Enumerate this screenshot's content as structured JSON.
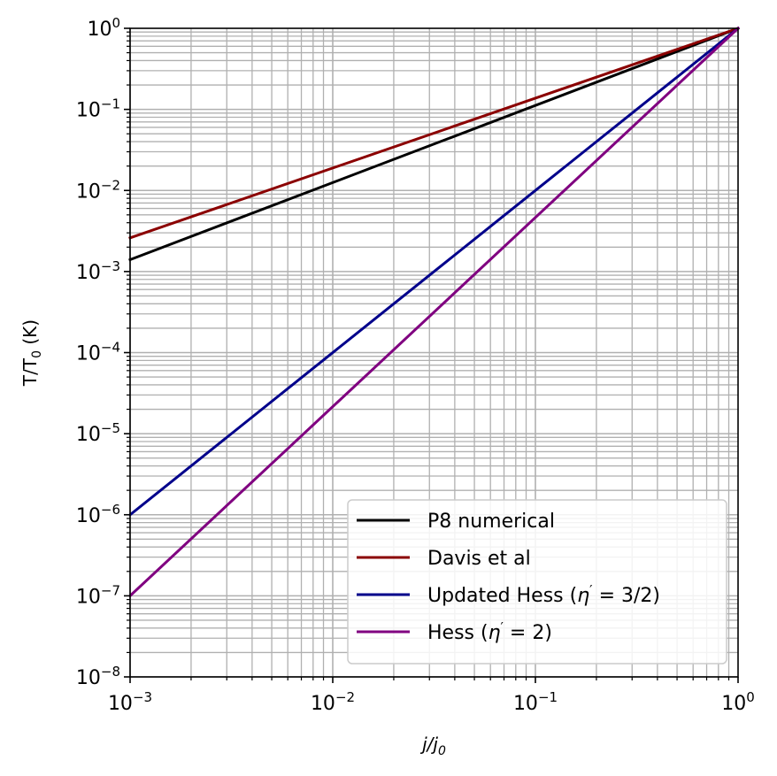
{
  "chart_data": {
    "type": "line",
    "x_scale": "log",
    "y_scale": "log",
    "xlim": [
      0.001,
      1
    ],
    "ylim": [
      1e-08,
      1
    ],
    "grid": true,
    "grid_minor": true,
    "legend_position": "lower-right",
    "xlabel": {
      "base": "j/j",
      "sub": "0"
    },
    "ylabel": {
      "base": "T/T",
      "sub": "0",
      "suffix": " (K)"
    },
    "x_ticks": [
      {
        "value": 0.001,
        "base": "10",
        "exp": "−3"
      },
      {
        "value": 0.01,
        "base": "10",
        "exp": "−2"
      },
      {
        "value": 0.1,
        "base": "10",
        "exp": "−1"
      },
      {
        "value": 1,
        "base": "10",
        "exp": "0"
      }
    ],
    "y_ticks": [
      {
        "value": 1e-08,
        "base": "10",
        "exp": "−8"
      },
      {
        "value": 1e-07,
        "base": "10",
        "exp": "−7"
      },
      {
        "value": 1e-06,
        "base": "10",
        "exp": "−6"
      },
      {
        "value": 1e-05,
        "base": "10",
        "exp": "−5"
      },
      {
        "value": 0.0001,
        "base": "10",
        "exp": "−4"
      },
      {
        "value": 0.001,
        "base": "10",
        "exp": "−3"
      },
      {
        "value": 0.01,
        "base": "10",
        "exp": "−2"
      },
      {
        "value": 0.1,
        "base": "10",
        "exp": "−1"
      },
      {
        "value": 1,
        "base": "10",
        "exp": "0"
      }
    ],
    "series": [
      {
        "name": "P8 numerical",
        "color": "#000000",
        "x": [
          0.001,
          1
        ],
        "y": [
          0.0014,
          1
        ]
      },
      {
        "name": "Davis et al",
        "color": "#8b0000",
        "x": [
          0.001,
          1
        ],
        "y": [
          0.0026,
          1
        ]
      },
      {
        "name": "Updated Hess (η′ = 3/2)",
        "label_parts": [
          "Updated Hess (",
          "η",
          "′",
          " = 3/2)"
        ],
        "color": "#00008b",
        "x": [
          0.001,
          1
        ],
        "y": [
          1e-06,
          1
        ]
      },
      {
        "name": "Hess (η′ = 2)",
        "label_parts": [
          "Hess (",
          "η",
          "′",
          " = 2)"
        ],
        "color": "#800080",
        "x": [
          0.001,
          1
        ],
        "y": [
          1e-07,
          1
        ]
      }
    ]
  }
}
